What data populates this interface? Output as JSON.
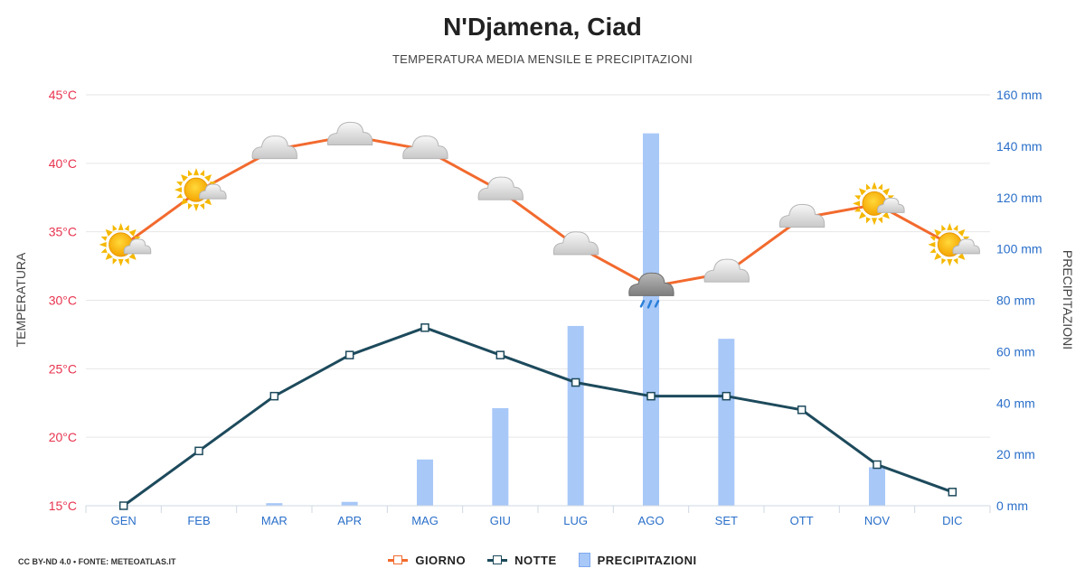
{
  "title": "N'Djamena, Ciad",
  "subtitle": "TEMPERATURA MEDIA MENSILE E PRECIPITAZIONI",
  "credit": "CC BY-ND 4.0 • FONTE: METEOATLAS.IT",
  "legend": {
    "day": "GIORNO",
    "night": "NOTTE",
    "precip": "PRECIPITAZIONI"
  },
  "colors": {
    "day": "#f26a2e",
    "night": "#1d4a5c",
    "precip": "#a8c8f8",
    "temp_axis": "#e8344f",
    "precip_axis": "#2a6fc9"
  },
  "chart_data": {
    "type": "line",
    "categories": [
      "GEN",
      "FEB",
      "MAR",
      "APR",
      "MAG",
      "GIU",
      "LUG",
      "AGO",
      "SET",
      "OTT",
      "NOV",
      "DIC"
    ],
    "series": [
      {
        "name": "GIORNO",
        "type": "line",
        "axis": "left",
        "values": [
          34,
          38,
          41,
          42,
          41,
          38,
          34,
          31,
          32,
          36,
          37,
          34
        ]
      },
      {
        "name": "NOTTE",
        "type": "line",
        "axis": "left",
        "values": [
          15,
          19,
          23,
          26,
          28,
          26,
          24,
          23,
          23,
          22,
          18,
          16
        ]
      },
      {
        "name": "PRECIPITAZIONI",
        "type": "bar",
        "axis": "right",
        "values": [
          0,
          0,
          1,
          1.5,
          18,
          38,
          70,
          145,
          65,
          0,
          15,
          0
        ]
      }
    ],
    "weather_icons": [
      "sun-cloud",
      "sun-cloud",
      "cloud",
      "cloud",
      "cloud",
      "cloud",
      "cloud",
      "rain-cloud",
      "cloud",
      "cloud",
      "sun-cloud",
      "sun-cloud"
    ],
    "y_left": {
      "label": "TEMPERATURA",
      "min": 15,
      "max": 45,
      "step": 5,
      "unit": "°C"
    },
    "y_right": {
      "label": "PRECIPITAZIONI",
      "min": 0,
      "max": 160,
      "step": 20,
      "unit": " mm"
    },
    "grid": true,
    "legend_position": "bottom"
  }
}
